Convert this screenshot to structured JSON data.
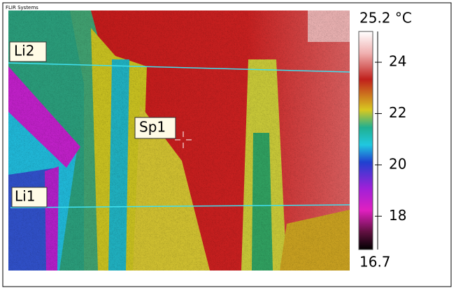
{
  "brand": "FLIR Systems",
  "markers": {
    "line_top": "Li2",
    "spot": "Sp1",
    "line_bottom": "Li1"
  },
  "scale": {
    "max": {
      "value": 25.2,
      "label": "25.2 °C"
    },
    "min": 16.7,
    "ticks": [
      24,
      22,
      20,
      18
    ]
  }
}
